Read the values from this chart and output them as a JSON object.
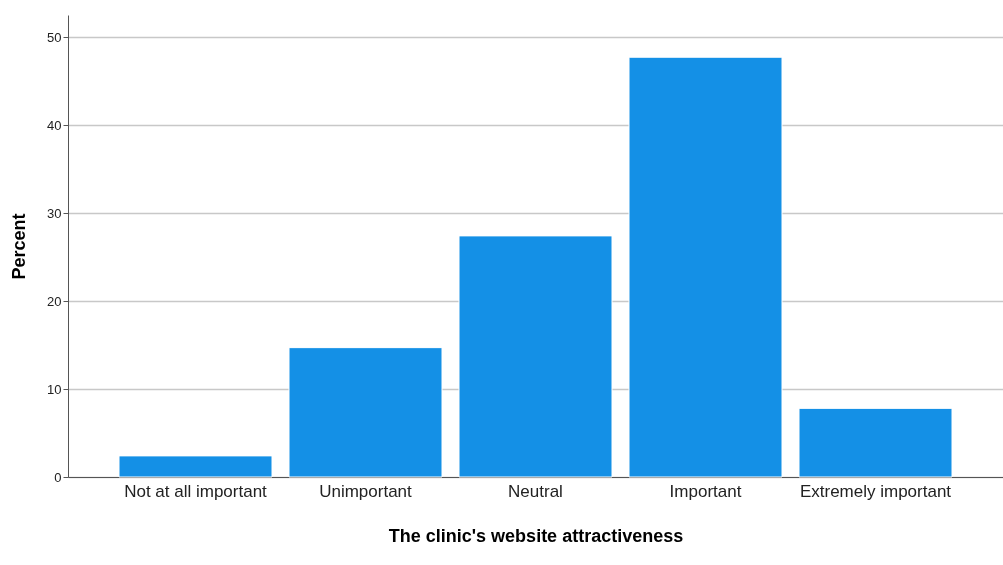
{
  "chart_data": {
    "type": "bar",
    "xlabel": "The clinic's website attractiveness",
    "ylabel": "Percent",
    "categories": [
      "Not at all important",
      "Unimportant",
      "Neutral",
      "Important",
      "Extremely important"
    ],
    "values": [
      2.4,
      14.7,
      27.4,
      47.7,
      7.8
    ],
    "color": "#1490e6",
    "ylim": [
      0,
      52.5
    ],
    "yticks": [
      0,
      10,
      20,
      30,
      40,
      50
    ],
    "grid": "y"
  }
}
